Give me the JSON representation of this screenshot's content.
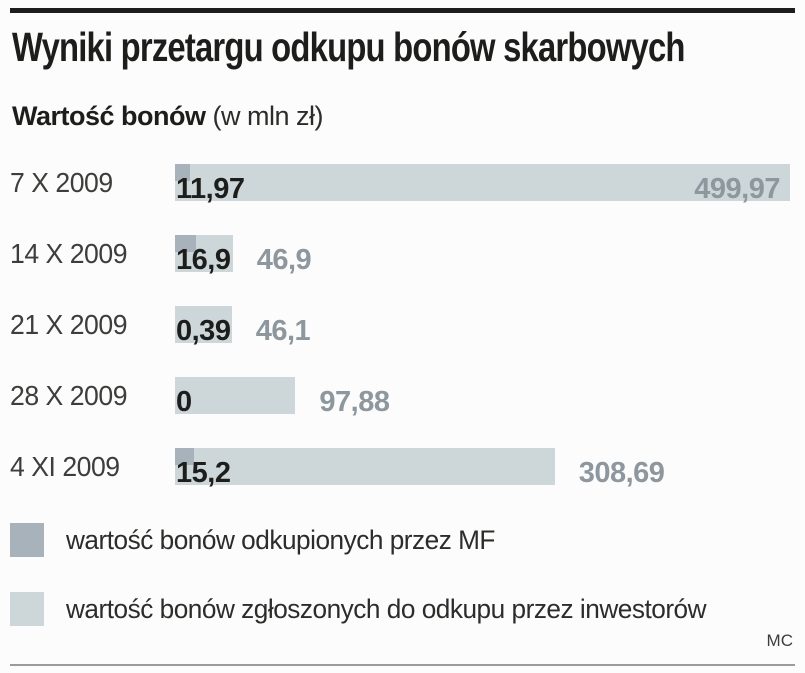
{
  "title": "Wyniki przetargu odkupu bonów skarbowych",
  "subtitle": {
    "bold": "Wartość bonów",
    "unit": " (w mln zł)"
  },
  "credit": "MC",
  "colors": {
    "bar_submitted": "#cdd7da",
    "bar_redeemed": "#a8b2ba",
    "value_black": "#1d1d1b",
    "value_gray": "#8d979d",
    "rule_top": "#1d1d1b",
    "rule_bottom": "#9b9b9b"
  },
  "rows": [
    {
      "date": "7 X 2009",
      "redeemed": 11.97,
      "submitted": 499.97,
      "redeemed_label": "11,97",
      "submitted_label": "499,97"
    },
    {
      "date": "14 X 2009",
      "redeemed": 16.9,
      "submitted": 46.9,
      "redeemed_label": "16,9",
      "submitted_label": "46,9"
    },
    {
      "date": "21 X 2009",
      "redeemed": 0.39,
      "submitted": 46.1,
      "redeemed_label": "0,39",
      "submitted_label": "46,1"
    },
    {
      "date": "28 X 2009",
      "redeemed": 0,
      "submitted": 97.88,
      "redeemed_label": "0",
      "submitted_label": "97,88"
    },
    {
      "date": "4 XI 2009",
      "redeemed": 15.2,
      "submitted": 308.69,
      "redeemed_label": "15,2",
      "submitted_label": "308,69"
    }
  ],
  "legend": [
    {
      "label": "wartość bonów odkupionych przez MF"
    },
    {
      "label": "wartość bonów zgłoszonych do odkupu przez inwestorów"
    }
  ],
  "chart_data": {
    "type": "bar",
    "orientation": "horizontal",
    "title": "Wyniki przetargu odkupu bonów skarbowych",
    "axis_label": "Wartość bonów (w mln zł)",
    "categories": [
      "7 X 2009",
      "14 X 2009",
      "21 X 2009",
      "28 X 2009",
      "4 XI 2009"
    ],
    "series": [
      {
        "name": "wartość bonów odkupionych przez MF",
        "values": [
          11.97,
          16.9,
          0.39,
          0,
          15.2
        ]
      },
      {
        "name": "wartość bonów zgłoszonych do odkupu przez inwestorów",
        "values": [
          499.97,
          46.9,
          46.1,
          97.88,
          308.69
        ]
      }
    ],
    "xlim": [
      0,
      500
    ],
    "value_labels": true,
    "grid": false,
    "legend_position": "bottom"
  }
}
